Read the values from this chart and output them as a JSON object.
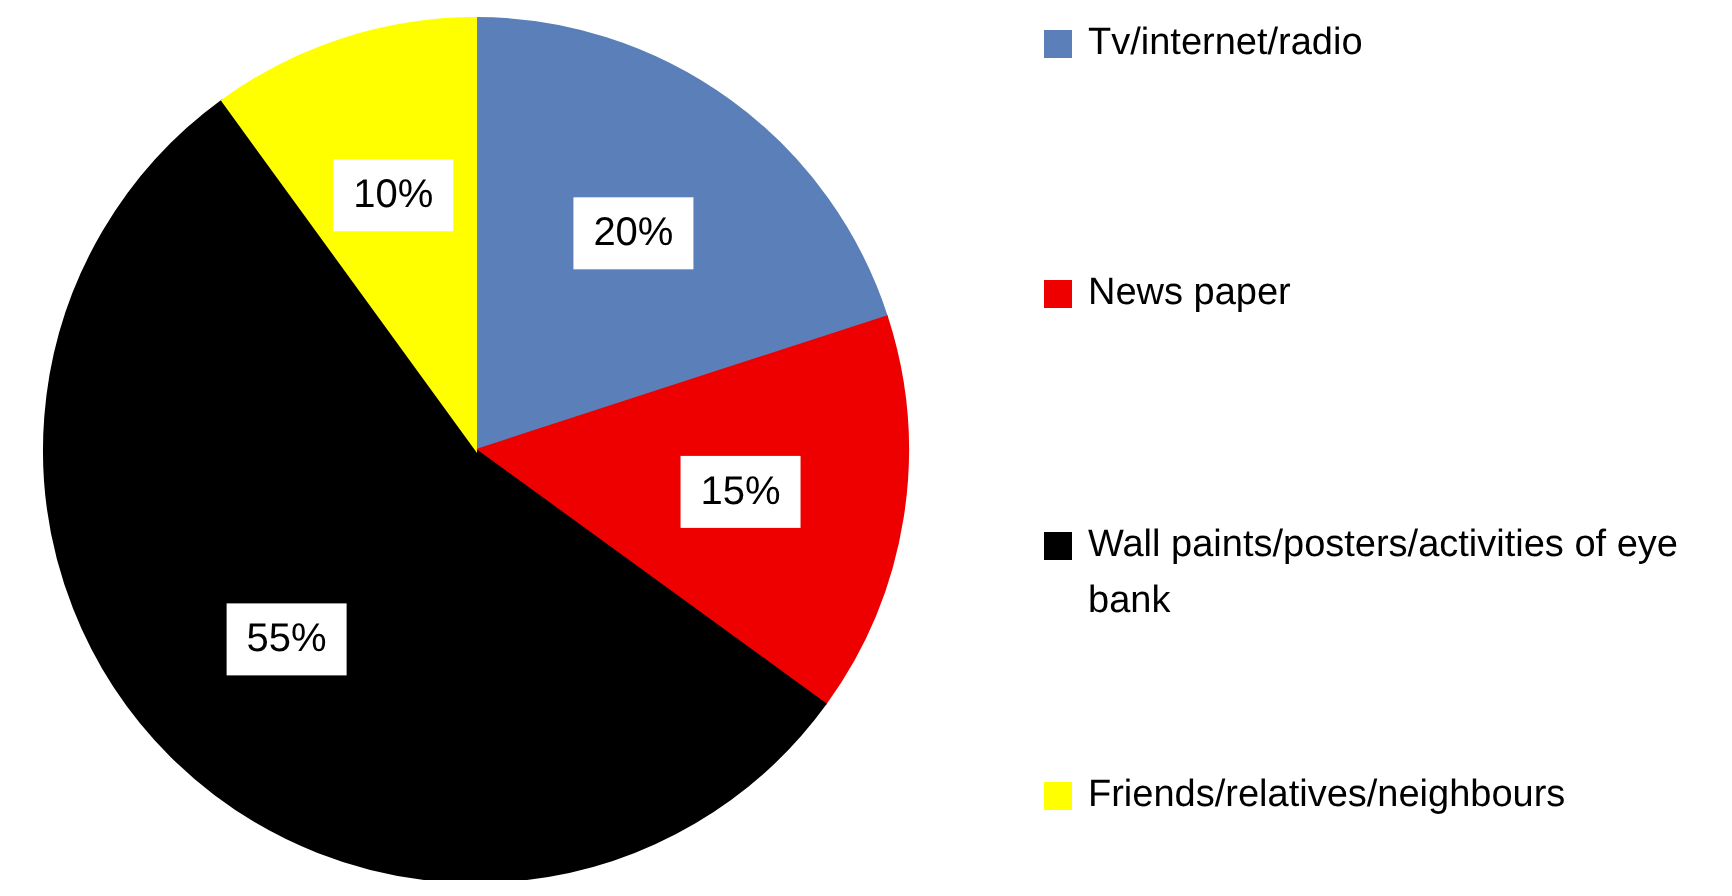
{
  "chart_data": {
    "type": "pie",
    "categories": [
      "Tv/internet/radio",
      "News paper",
      "Wall paints/posters/activities of eye bank",
      "Friends/relatives/neighbours"
    ],
    "values": [
      20,
      15,
      55,
      10
    ],
    "colors": [
      "#5b7fb8",
      "#ee0000",
      "#000000",
      "#ffff00"
    ],
    "value_labels": [
      "20%",
      "15%",
      "55%",
      "10%"
    ],
    "legend": "right"
  }
}
